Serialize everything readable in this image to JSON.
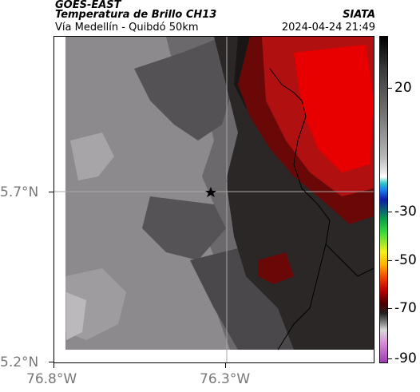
{
  "header": {
    "satellite": "GOES-EAST",
    "product": "Temperatura de Brillo CH13",
    "route": "Vía Medellín - Quibdó 50km",
    "org": "SIATA",
    "datetime": "2024-04-24 21:49"
  },
  "map": {
    "lat_labels": [
      "5.7°N",
      "5.2°N"
    ],
    "lon_labels": [
      "76.8°W",
      "76.3°W"
    ],
    "marker": "star-icon"
  },
  "colorbar": {
    "labels": [
      "20",
      "-30",
      "-50",
      "-70",
      "-90"
    ]
  },
  "colors": {
    "light_gray": "#8c8a8c",
    "mid_gray": "#6b696b",
    "dark_gray": "#4a484a",
    "near_black": "#1e1a1a",
    "red_warm": "#b01010",
    "red_hot": "#e80000"
  }
}
